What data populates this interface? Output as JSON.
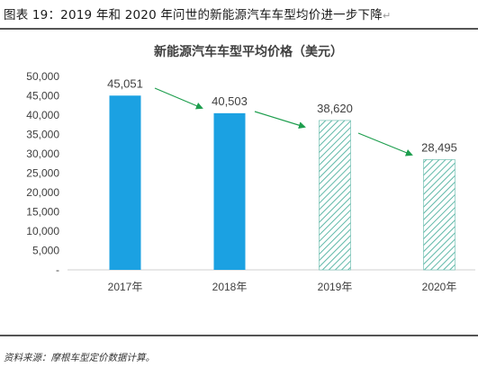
{
  "figure": {
    "caption": "图表 19：2019 年和 2020 年问世的新能源汽车车型均价进一步下降",
    "source": "资料来源：摩根车型定价数据计算。"
  },
  "colors": {
    "actual_bar": "#1ba1e2",
    "forecast_hatch": "#5fb8a8",
    "arrow": "#1e9e4e",
    "axis_text": "#404040"
  },
  "chart_data": {
    "type": "bar",
    "title": "新能源汽车车型平均价格（美元）",
    "categories": [
      "2017年",
      "2018年",
      "2019年",
      "2020年"
    ],
    "values": [
      45051,
      40503,
      38620,
      28495
    ],
    "value_labels": [
      "45,051",
      "40,503",
      "38,620",
      "28,495"
    ],
    "bar_styles": [
      "solid",
      "solid",
      "hatched",
      "hatched"
    ],
    "ylim": [
      0,
      50000
    ],
    "yticks": [
      0,
      5000,
      10000,
      15000,
      20000,
      25000,
      30000,
      35000,
      40000,
      45000,
      50000
    ],
    "ytick_labels": [
      "-",
      "5,000",
      "10,000",
      "15,000",
      "20,000",
      "25,000",
      "30,000",
      "35,000",
      "40,000",
      "45,000",
      "50,000"
    ],
    "xlabel": "",
    "ylabel": "",
    "grid": false,
    "legend": "none",
    "annotations": [
      "trend arrows from 2017 to 2018",
      "trend arrows from 2018 to 2019",
      "trend arrows from 2019 to 2020"
    ]
  }
}
